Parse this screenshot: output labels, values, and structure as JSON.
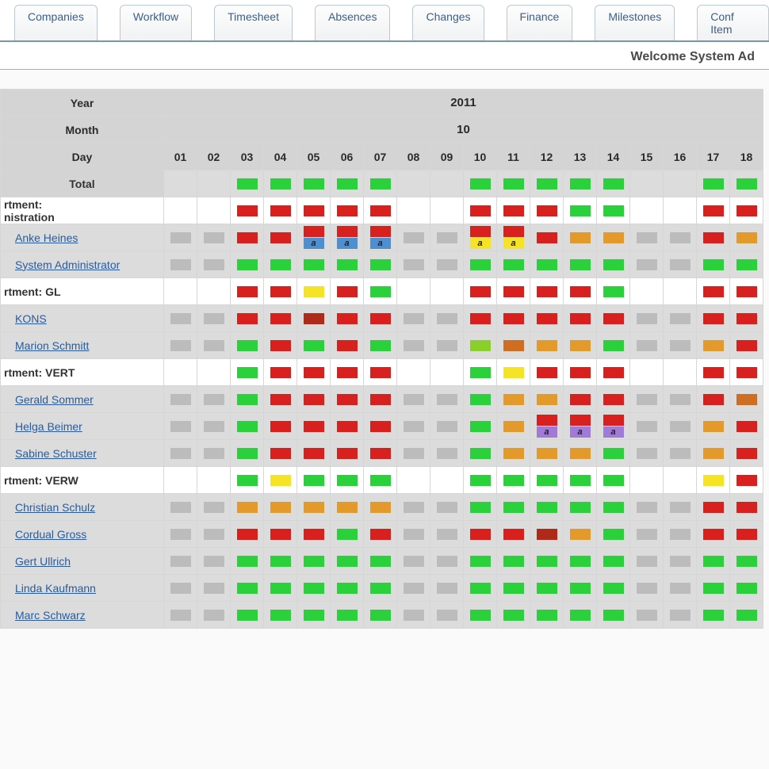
{
  "nav": {
    "tabs": [
      "Companies",
      "Workflow",
      "Timesheet",
      "Absences",
      "Changes",
      "Finance",
      "Milestones",
      "Conf Item"
    ]
  },
  "welcome": "Welcome System Ad",
  "header": {
    "year_label": "Year",
    "year_value": "2011",
    "month_label": "Month",
    "month_value": "10",
    "day_label": "Day",
    "days": [
      "01",
      "02",
      "03",
      "04",
      "05",
      "06",
      "07",
      "08",
      "09",
      "10",
      "11",
      "12",
      "13",
      "14",
      "15",
      "16",
      "17",
      "18"
    ],
    "total_label": "Total"
  },
  "colors": {
    "green": "#2bd13a",
    "red": "#d8201e",
    "darkred": "#b02a1a",
    "yellow": "#f5e426",
    "orange": "#e39a2a",
    "darkorange": "#cf6d22",
    "ygreen": "#8bcf2a",
    "blue": "#4d8fd1",
    "purple": "#a07ad6",
    "grey": "#bcbcbc"
  },
  "rows": [
    {
      "type": "total",
      "label": "Total",
      "cells": [
        null,
        null,
        "green",
        "green",
        "green",
        "green",
        "green",
        null,
        null,
        "green",
        "green",
        "green",
        "green",
        "green",
        null,
        null,
        "green",
        "green"
      ]
    },
    {
      "type": "dept",
      "label": "rtment:\nnistration",
      "cells": [
        null,
        null,
        "red",
        "red",
        "red",
        "red",
        "red",
        null,
        null,
        "red",
        "red",
        "red",
        "green",
        "green",
        null,
        null,
        "red",
        "red"
      ]
    },
    {
      "type": "person",
      "label": "Anke Heines",
      "cells": [
        "grey",
        "grey",
        "red",
        "red",
        [
          "red",
          "blue:a"
        ],
        [
          "red",
          "blue:a"
        ],
        [
          "red",
          "blue:a"
        ],
        "grey",
        "grey",
        [
          "red",
          "yellow:a"
        ],
        [
          "red",
          "yellow:a"
        ],
        "red",
        "orange",
        "orange",
        "grey",
        "grey",
        "red",
        "orange"
      ]
    },
    {
      "type": "person",
      "label": "System Administrator",
      "cells": [
        "grey",
        "grey",
        "green",
        "green",
        "green",
        "green",
        "green",
        "grey",
        "grey",
        "green",
        "green",
        "green",
        "green",
        "green",
        "grey",
        "grey",
        "green",
        "green"
      ]
    },
    {
      "type": "dept",
      "label": "rtment: GL",
      "cells": [
        null,
        null,
        "red",
        "red",
        "yellow",
        "red",
        "green",
        null,
        null,
        "red",
        "red",
        "red",
        "red",
        "green",
        null,
        null,
        "red",
        "red"
      ]
    },
    {
      "type": "person",
      "label": "  KONS",
      "cells": [
        "grey",
        "grey",
        "red",
        "red",
        "darkred",
        "red",
        "red",
        "grey",
        "grey",
        "red",
        "red",
        "red",
        "red",
        "red",
        "grey",
        "grey",
        "red",
        "red"
      ]
    },
    {
      "type": "person",
      "label": "Marion Schmitt",
      "cells": [
        "grey",
        "grey",
        "green",
        "red",
        "green",
        "red",
        "green",
        "grey",
        "grey",
        "ygreen",
        "darkorange",
        "orange",
        "orange",
        "green",
        "grey",
        "grey",
        "orange",
        "red"
      ]
    },
    {
      "type": "dept",
      "label": "rtment: VERT",
      "cells": [
        null,
        null,
        "green",
        "red",
        "red",
        "red",
        "red",
        null,
        null,
        "green",
        "yellow",
        "red",
        "red",
        "red",
        null,
        null,
        "red",
        "red"
      ]
    },
    {
      "type": "person",
      "label": "Gerald Sommer",
      "cells": [
        "grey",
        "grey",
        "green",
        "red",
        "red",
        "red",
        "red",
        "grey",
        "grey",
        "green",
        "orange",
        "orange",
        "red",
        "red",
        "grey",
        "grey",
        "red",
        "darkorange"
      ]
    },
    {
      "type": "person",
      "label": "Helga Beimer",
      "cells": [
        "grey",
        "grey",
        "green",
        "red",
        "red",
        "red",
        "red",
        "grey",
        "grey",
        "green",
        "orange",
        [
          "red",
          "purple:a"
        ],
        [
          "red",
          "purple:a"
        ],
        [
          "red",
          "purple:a"
        ],
        "grey",
        "grey",
        "orange",
        "red"
      ]
    },
    {
      "type": "person",
      "label": "Sabine Schuster",
      "cells": [
        "grey",
        "grey",
        "green",
        "red",
        "red",
        "red",
        "red",
        "grey",
        "grey",
        "green",
        "orange",
        "orange",
        "orange",
        "green",
        "grey",
        "grey",
        "orange",
        "red"
      ]
    },
    {
      "type": "dept",
      "label": "rtment: VERW",
      "cells": [
        null,
        null,
        "green",
        "yellow",
        "green",
        "green",
        "green",
        null,
        null,
        "green",
        "green",
        "green",
        "green",
        "green",
        null,
        null,
        "yellow",
        "red"
      ]
    },
    {
      "type": "person",
      "label": "Christian Schulz",
      "cells": [
        "grey",
        "grey",
        "orange",
        "orange",
        "orange",
        "orange",
        "orange",
        "grey",
        "grey",
        "green",
        "green",
        "green",
        "green",
        "green",
        "grey",
        "grey",
        "red",
        "red"
      ]
    },
    {
      "type": "person",
      "label": "Cordual Gross",
      "cells": [
        "grey",
        "grey",
        "red",
        "red",
        "red",
        "green",
        "red",
        "grey",
        "grey",
        "red",
        "red",
        "darkred",
        "orange",
        "green",
        "grey",
        "grey",
        "red",
        "red"
      ]
    },
    {
      "type": "person",
      "label": "Gert Ullrich",
      "cells": [
        "grey",
        "grey",
        "green",
        "green",
        "green",
        "green",
        "green",
        "grey",
        "grey",
        "green",
        "green",
        "green",
        "green",
        "green",
        "grey",
        "grey",
        "green",
        "green"
      ]
    },
    {
      "type": "person",
      "label": "Linda Kaufmann",
      "cells": [
        "grey",
        "grey",
        "green",
        "green",
        "green",
        "green",
        "green",
        "grey",
        "grey",
        "green",
        "green",
        "green",
        "green",
        "green",
        "grey",
        "grey",
        "green",
        "green"
      ]
    },
    {
      "type": "person",
      "label": "Marc Schwarz",
      "cells": [
        "grey",
        "grey",
        "green",
        "green",
        "green",
        "green",
        "green",
        "grey",
        "grey",
        "green",
        "green",
        "green",
        "green",
        "green",
        "grey",
        "grey",
        "green",
        "green"
      ]
    }
  ]
}
